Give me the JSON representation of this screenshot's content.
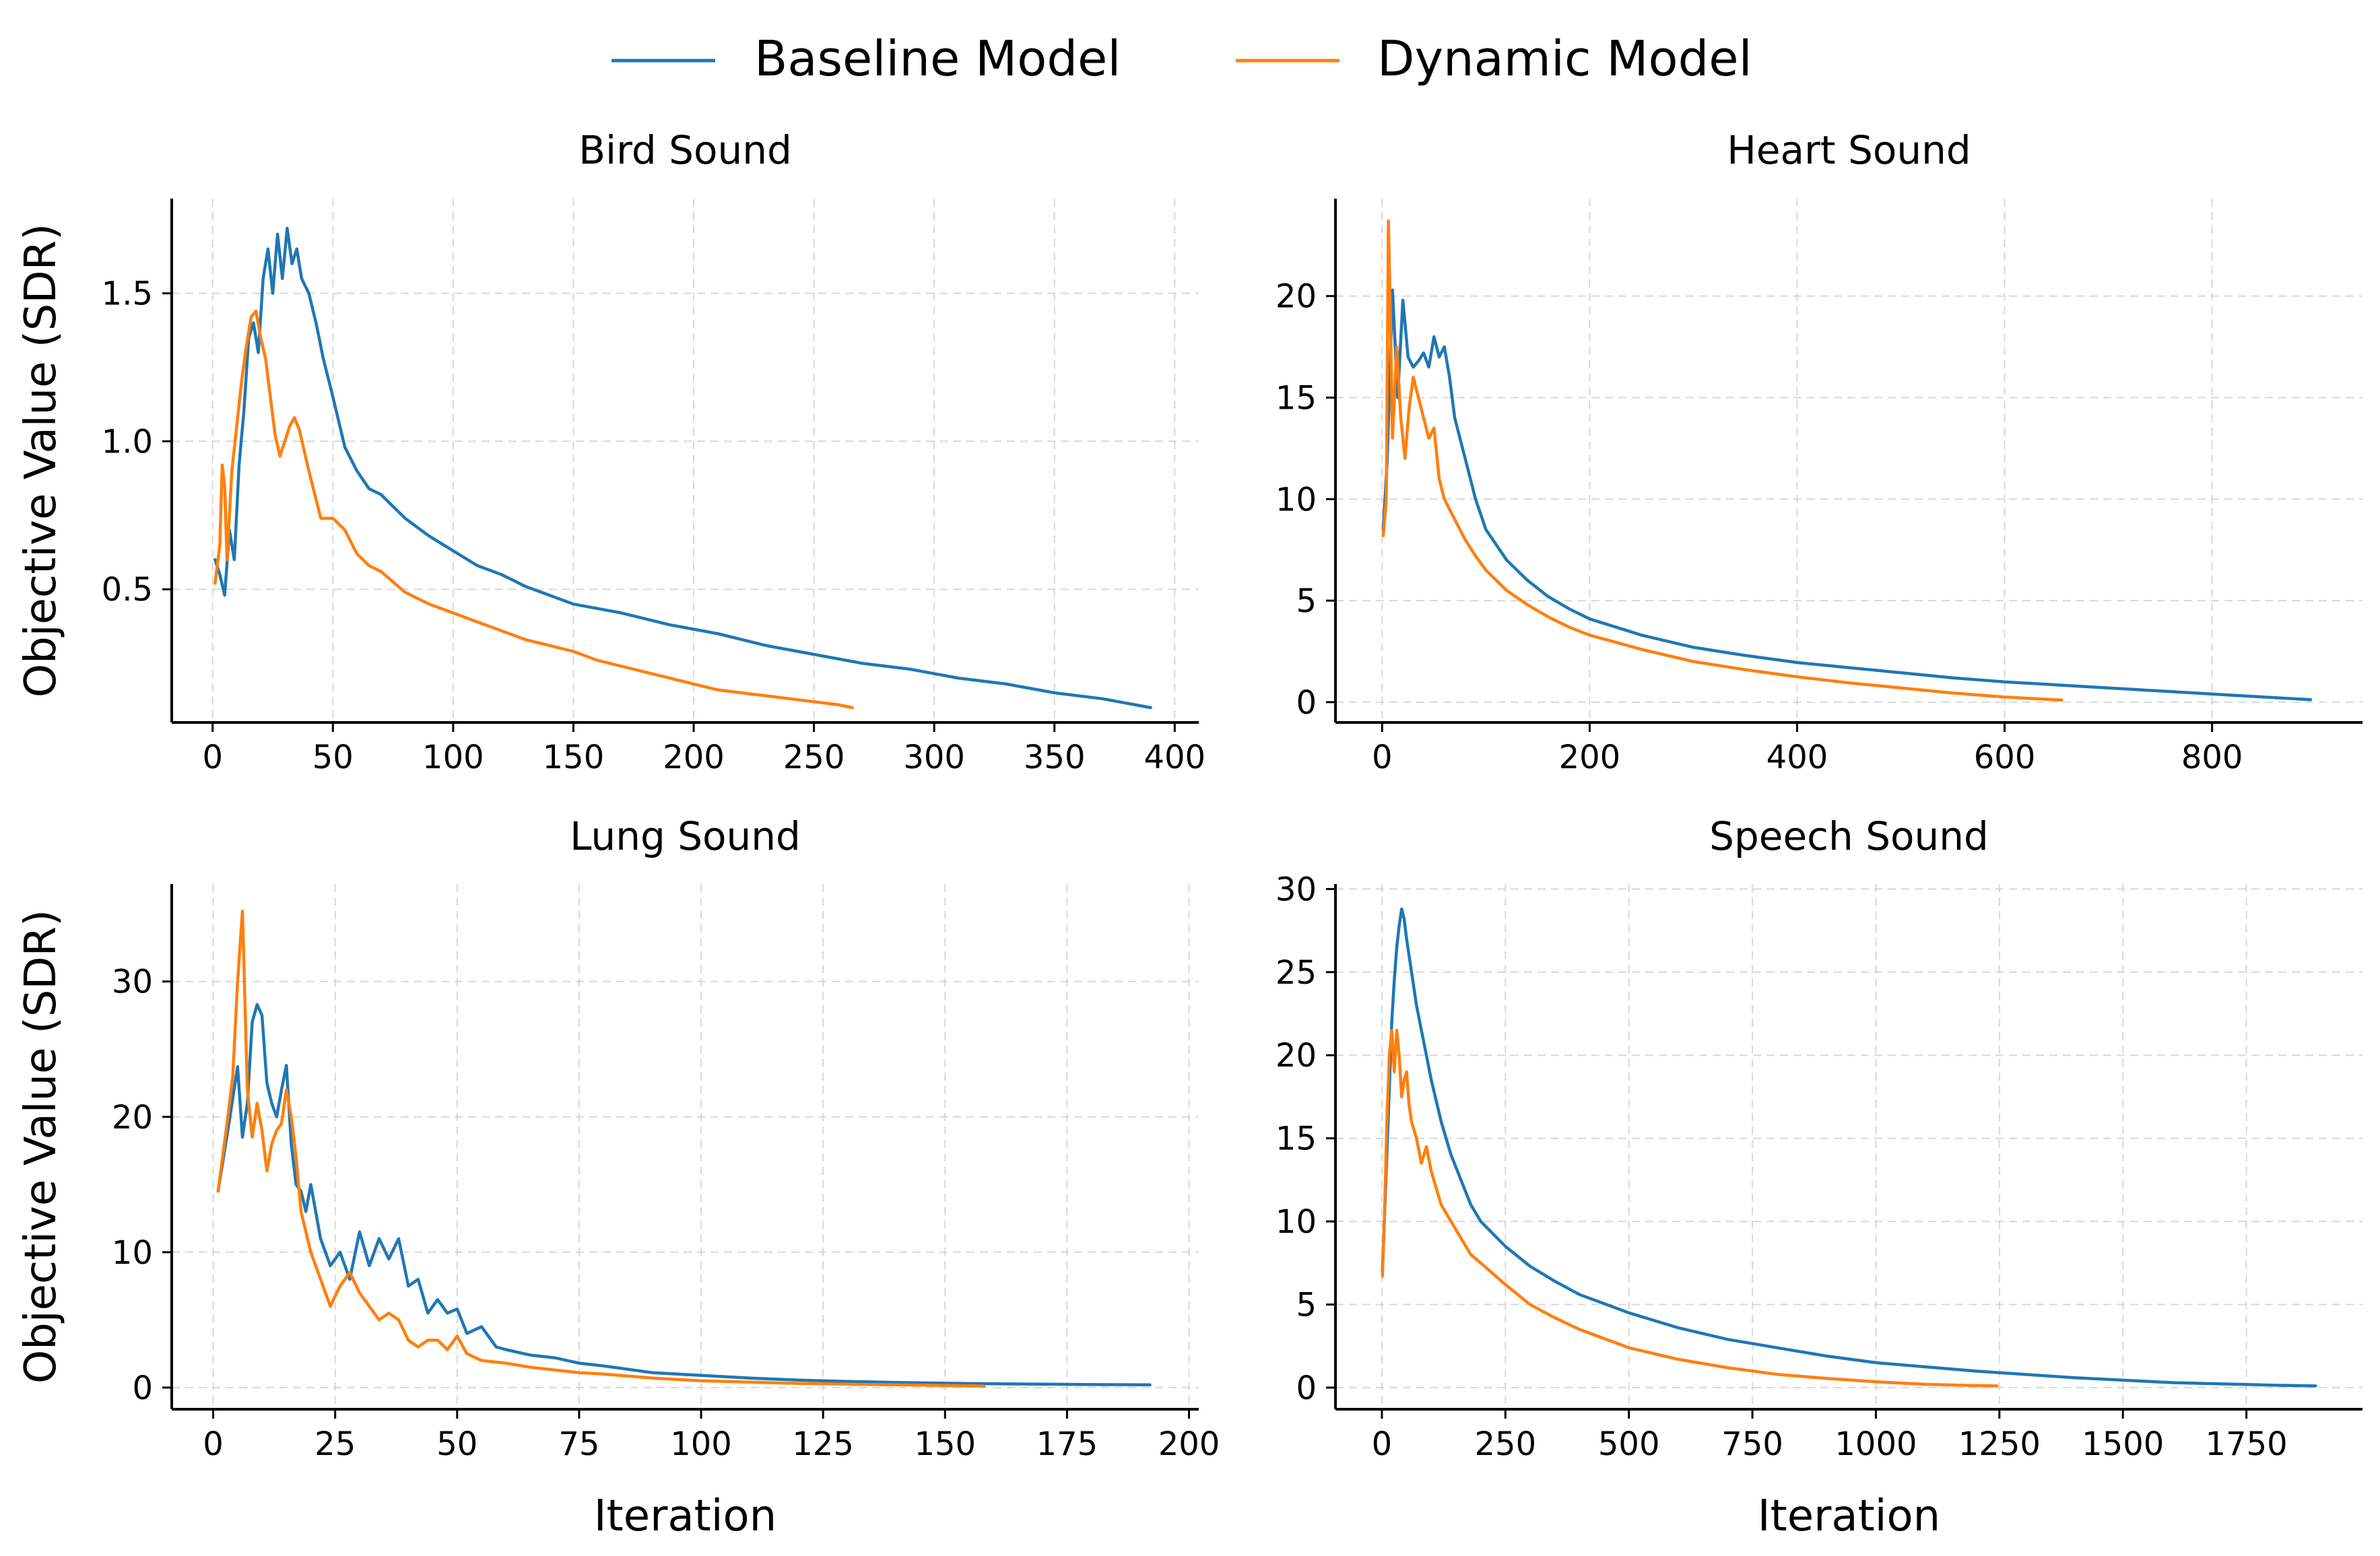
{
  "legend": {
    "items": [
      {
        "label": "Baseline Model",
        "color": "#1f77b4"
      },
      {
        "label": "Dynamic Model",
        "color": "#ff7f0e"
      }
    ]
  },
  "xlabel": "Iteration",
  "ylabel": "Objective Value (SDR)",
  "chart_data": [
    {
      "type": "line",
      "title": "Bird Sound",
      "xlabel": "",
      "ylabel": "Objective Value (SDR)",
      "xlim": [
        -17,
        410
      ],
      "ylim": [
        0.05,
        1.82
      ],
      "xticks": [
        0,
        50,
        100,
        150,
        200,
        250,
        300,
        350,
        400
      ],
      "yticks": [
        0.5,
        1.0,
        1.5
      ],
      "ytick_labels": [
        "0.5",
        "1.0",
        "1.5"
      ],
      "grid": true,
      "series": [
        {
          "name": "Baseline Model",
          "color": "#1f77b4",
          "x": [
            1,
            3,
            5,
            7,
            9,
            11,
            13,
            15,
            17,
            19,
            21,
            23,
            25,
            27,
            29,
            31,
            33,
            35,
            37,
            40,
            43,
            46,
            50,
            55,
            60,
            65,
            70,
            80,
            90,
            100,
            110,
            120,
            130,
            140,
            150,
            170,
            190,
            210,
            230,
            250,
            270,
            290,
            310,
            330,
            350,
            370,
            390
          ],
          "y": [
            0.6,
            0.55,
            0.48,
            0.7,
            0.6,
            0.92,
            1.1,
            1.35,
            1.4,
            1.3,
            1.55,
            1.65,
            1.5,
            1.7,
            1.55,
            1.72,
            1.6,
            1.65,
            1.55,
            1.5,
            1.4,
            1.28,
            1.15,
            0.98,
            0.9,
            0.84,
            0.82,
            0.74,
            0.68,
            0.63,
            0.58,
            0.55,
            0.51,
            0.48,
            0.45,
            0.42,
            0.38,
            0.35,
            0.31,
            0.28,
            0.25,
            0.23,
            0.2,
            0.18,
            0.15,
            0.13,
            0.1
          ]
        },
        {
          "name": "Dynamic Model",
          "color": "#ff7f0e",
          "x": [
            1,
            3,
            4,
            5,
            6,
            8,
            10,
            12,
            14,
            16,
            18,
            20,
            22,
            24,
            26,
            28,
            30,
            32,
            34,
            36,
            40,
            45,
            50,
            55,
            60,
            65,
            70,
            80,
            90,
            100,
            110,
            120,
            130,
            140,
            150,
            160,
            170,
            180,
            190,
            200,
            210,
            220,
            230,
            240,
            250,
            260,
            266
          ],
          "y": [
            0.52,
            0.65,
            0.92,
            0.85,
            0.6,
            0.9,
            1.05,
            1.2,
            1.32,
            1.42,
            1.44,
            1.35,
            1.28,
            1.15,
            1.02,
            0.95,
            1.0,
            1.05,
            1.08,
            1.04,
            0.9,
            0.74,
            0.74,
            0.7,
            0.62,
            0.58,
            0.56,
            0.49,
            0.45,
            0.42,
            0.39,
            0.36,
            0.33,
            0.31,
            0.29,
            0.26,
            0.24,
            0.22,
            0.2,
            0.18,
            0.16,
            0.15,
            0.14,
            0.13,
            0.12,
            0.11,
            0.1
          ]
        }
      ]
    },
    {
      "type": "line",
      "title": "Heart Sound",
      "xlabel": "",
      "ylabel": "",
      "xlim": [
        -45,
        945
      ],
      "ylim": [
        -1.0,
        24.8
      ],
      "xticks": [
        0,
        200,
        400,
        600,
        800
      ],
      "yticks": [
        0,
        5,
        10,
        15,
        20
      ],
      "ytick_labels": [
        "0",
        "5",
        "10",
        "15",
        "20"
      ],
      "grid": true,
      "series": [
        {
          "name": "Baseline Model",
          "color": "#1f77b4",
          "x": [
            1,
            5,
            10,
            15,
            20,
            25,
            30,
            35,
            40,
            45,
            50,
            55,
            60,
            65,
            70,
            80,
            90,
            100,
            120,
            140,
            160,
            180,
            200,
            250,
            300,
            350,
            400,
            450,
            500,
            550,
            600,
            650,
            700,
            750,
            800,
            850,
            895
          ],
          "y": [
            8.5,
            12,
            20.3,
            15,
            19.8,
            17,
            16.5,
            16.8,
            17.2,
            16.5,
            18,
            17,
            17.5,
            16,
            14,
            12,
            10,
            8.5,
            7,
            6,
            5.2,
            4.6,
            4.1,
            3.3,
            2.7,
            2.3,
            1.95,
            1.7,
            1.45,
            1.2,
            1.0,
            0.85,
            0.7,
            0.55,
            0.4,
            0.25,
            0.12
          ]
        },
        {
          "name": "Dynamic Model",
          "color": "#ff7f0e",
          "x": [
            1,
            4,
            6,
            8,
            10,
            14,
            18,
            22,
            26,
            30,
            35,
            40,
            45,
            50,
            55,
            60,
            70,
            80,
            90,
            100,
            120,
            140,
            160,
            180,
            200,
            250,
            300,
            350,
            400,
            450,
            500,
            550,
            600,
            655
          ],
          "y": [
            8.2,
            10,
            23.7,
            19,
            13,
            17.5,
            14,
            12,
            14.5,
            16,
            15,
            14,
            13,
            13.5,
            11,
            10,
            9,
            8,
            7.2,
            6.5,
            5.5,
            4.8,
            4.2,
            3.7,
            3.3,
            2.6,
            2.0,
            1.6,
            1.25,
            0.95,
            0.7,
            0.45,
            0.25,
            0.1
          ]
        }
      ]
    },
    {
      "type": "line",
      "title": "Lung Sound",
      "xlabel": "Iteration",
      "ylabel": "Objective Value (SDR)",
      "xlim": [
        -8.5,
        202
      ],
      "ylim": [
        -1.6,
        37.2
      ],
      "xticks": [
        0,
        25,
        50,
        75,
        100,
        125,
        150,
        175,
        200
      ],
      "yticks": [
        0,
        10,
        20,
        30
      ],
      "ytick_labels": [
        "0",
        "10",
        "20",
        "30"
      ],
      "grid": true,
      "series": [
        {
          "name": "Baseline Model",
          "color": "#1f77b4",
          "x": [
            1,
            3,
            5,
            6,
            7,
            8,
            9,
            10,
            11,
            12,
            13,
            14,
            15,
            16,
            17,
            18,
            19,
            20,
            22,
            24,
            26,
            28,
            30,
            32,
            34,
            36,
            38,
            40,
            42,
            44,
            46,
            48,
            50,
            52,
            55,
            58,
            60,
            65,
            70,
            75,
            80,
            90,
            100,
            110,
            120,
            130,
            140,
            150,
            160,
            170,
            180,
            192
          ],
          "y": [
            14.5,
            19,
            23.7,
            18.5,
            21,
            27,
            28.3,
            27.5,
            22.5,
            21,
            20,
            22,
            23.8,
            18,
            15,
            14.5,
            13,
            15,
            11,
            9,
            10,
            8,
            11.5,
            9,
            11,
            9.5,
            11,
            7.5,
            8,
            5.5,
            6.5,
            5.5,
            5.8,
            4,
            4.5,
            3,
            2.8,
            2.4,
            2.2,
            1.8,
            1.6,
            1.1,
            0.9,
            0.7,
            0.55,
            0.45,
            0.38,
            0.32,
            0.28,
            0.25,
            0.22,
            0.2
          ]
        },
        {
          "name": "Dynamic Model",
          "color": "#ff7f0e",
          "x": [
            1,
            3,
            4,
            5,
            6,
            7,
            8,
            9,
            10,
            11,
            12,
            13,
            14,
            15,
            16,
            17,
            18,
            20,
            22,
            24,
            26,
            28,
            30,
            32,
            34,
            36,
            38,
            40,
            42,
            44,
            46,
            48,
            50,
            52,
            55,
            60,
            65,
            70,
            75,
            80,
            90,
            100,
            110,
            120,
            130,
            140,
            150,
            158
          ],
          "y": [
            14.5,
            20,
            23,
            30,
            35.2,
            22,
            18.5,
            21,
            19,
            16,
            18,
            19,
            19.5,
            22,
            20,
            17,
            13,
            10,
            8,
            6,
            7.5,
            8.5,
            7,
            6,
            5,
            5.5,
            5,
            3.5,
            3,
            3.5,
            3.5,
            2.8,
            3.8,
            2.5,
            2,
            1.8,
            1.5,
            1.3,
            1.1,
            1.0,
            0.7,
            0.5,
            0.4,
            0.3,
            0.25,
            0.2,
            0.15,
            0.1
          ]
        }
      ]
    },
    {
      "type": "line",
      "title": "Speech Sound",
      "xlabel": "Iteration",
      "ylabel": "",
      "xlim": [
        -94,
        1985
      ],
      "ylim": [
        -1.3,
        30.3
      ],
      "xticks": [
        0,
        250,
        500,
        750,
        1000,
        1250,
        1500,
        1750
      ],
      "yticks": [
        0,
        5,
        10,
        15,
        20,
        25,
        30
      ],
      "ytick_labels": [
        "0",
        "5",
        "10",
        "15",
        "20",
        "25",
        "30"
      ],
      "grid": true,
      "series": [
        {
          "name": "Baseline Model",
          "color": "#1f77b4",
          "x": [
            1,
            5,
            10,
            15,
            20,
            25,
            30,
            35,
            40,
            45,
            50,
            60,
            70,
            80,
            90,
            100,
            120,
            140,
            160,
            180,
            200,
            250,
            300,
            350,
            400,
            500,
            600,
            700,
            800,
            900,
            1000,
            1200,
            1400,
            1600,
            1800,
            1890
          ],
          "y": [
            7,
            10,
            14,
            18,
            22,
            24.5,
            26.5,
            27.8,
            28.8,
            28.2,
            27,
            25,
            23,
            21.5,
            20,
            18.5,
            16,
            14,
            12.5,
            11,
            10,
            8.5,
            7.3,
            6.4,
            5.6,
            4.5,
            3.6,
            2.9,
            2.4,
            1.9,
            1.5,
            1.0,
            0.6,
            0.3,
            0.15,
            0.1
          ]
        },
        {
          "name": "Dynamic Model",
          "color": "#ff7f0e",
          "x": [
            1,
            5,
            10,
            15,
            20,
            25,
            30,
            35,
            40,
            45,
            50,
            55,
            60,
            70,
            80,
            90,
            100,
            110,
            120,
            140,
            160,
            180,
            200,
            250,
            300,
            350,
            400,
            500,
            600,
            700,
            800,
            900,
            1000,
            1100,
            1200,
            1245
          ],
          "y": [
            6.7,
            10,
            16,
            20,
            21.5,
            19,
            21.5,
            20,
            17.5,
            18.5,
            19,
            17,
            16,
            15,
            13.5,
            14.5,
            13,
            12,
            11,
            10,
            9,
            8,
            7.5,
            6.2,
            5,
            4.2,
            3.5,
            2.4,
            1.7,
            1.2,
            0.8,
            0.55,
            0.35,
            0.2,
            0.12,
            0.1
          ]
        }
      ]
    }
  ]
}
